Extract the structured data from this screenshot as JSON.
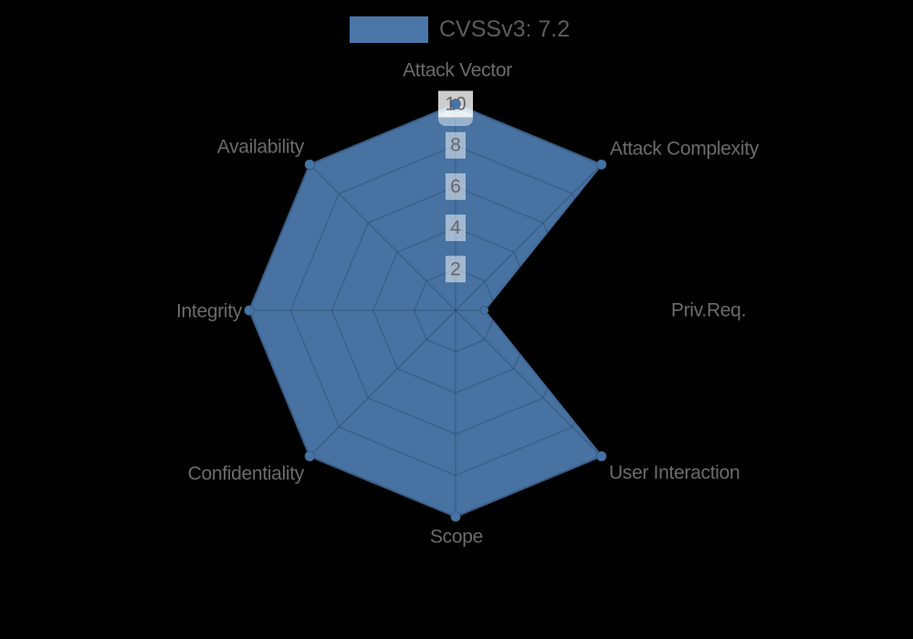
{
  "legend": {
    "label": "CVSSv3: 7.2",
    "swatch_color": "#4A77A8"
  },
  "chart_data": {
    "type": "radar",
    "title": "",
    "categories": [
      "Attack Vector",
      "Attack Complexity",
      "Priv.Req.",
      "User Interaction",
      "Scope",
      "Confidentiality",
      "Integrity",
      "Availability"
    ],
    "series": [
      {
        "name": "CVSSv3: 7.2",
        "values": [
          10,
          10,
          1.4,
          10,
          10,
          10,
          10,
          10
        ],
        "color": "#4A77A8",
        "border_color": "#416C9C"
      }
    ],
    "ticks": [
      2,
      4,
      6,
      8,
      10
    ],
    "rmin": 0,
    "rmax": 10,
    "grid": true,
    "grid_shape": "polygon",
    "legend_position": "top",
    "grid_color": "rgba(0,0,0,0.16)",
    "tick_backdrop_color": "rgba(255,255,255,0.5)",
    "axis_label_color": "#6b6b6b",
    "tick_label_color": "#666666"
  }
}
